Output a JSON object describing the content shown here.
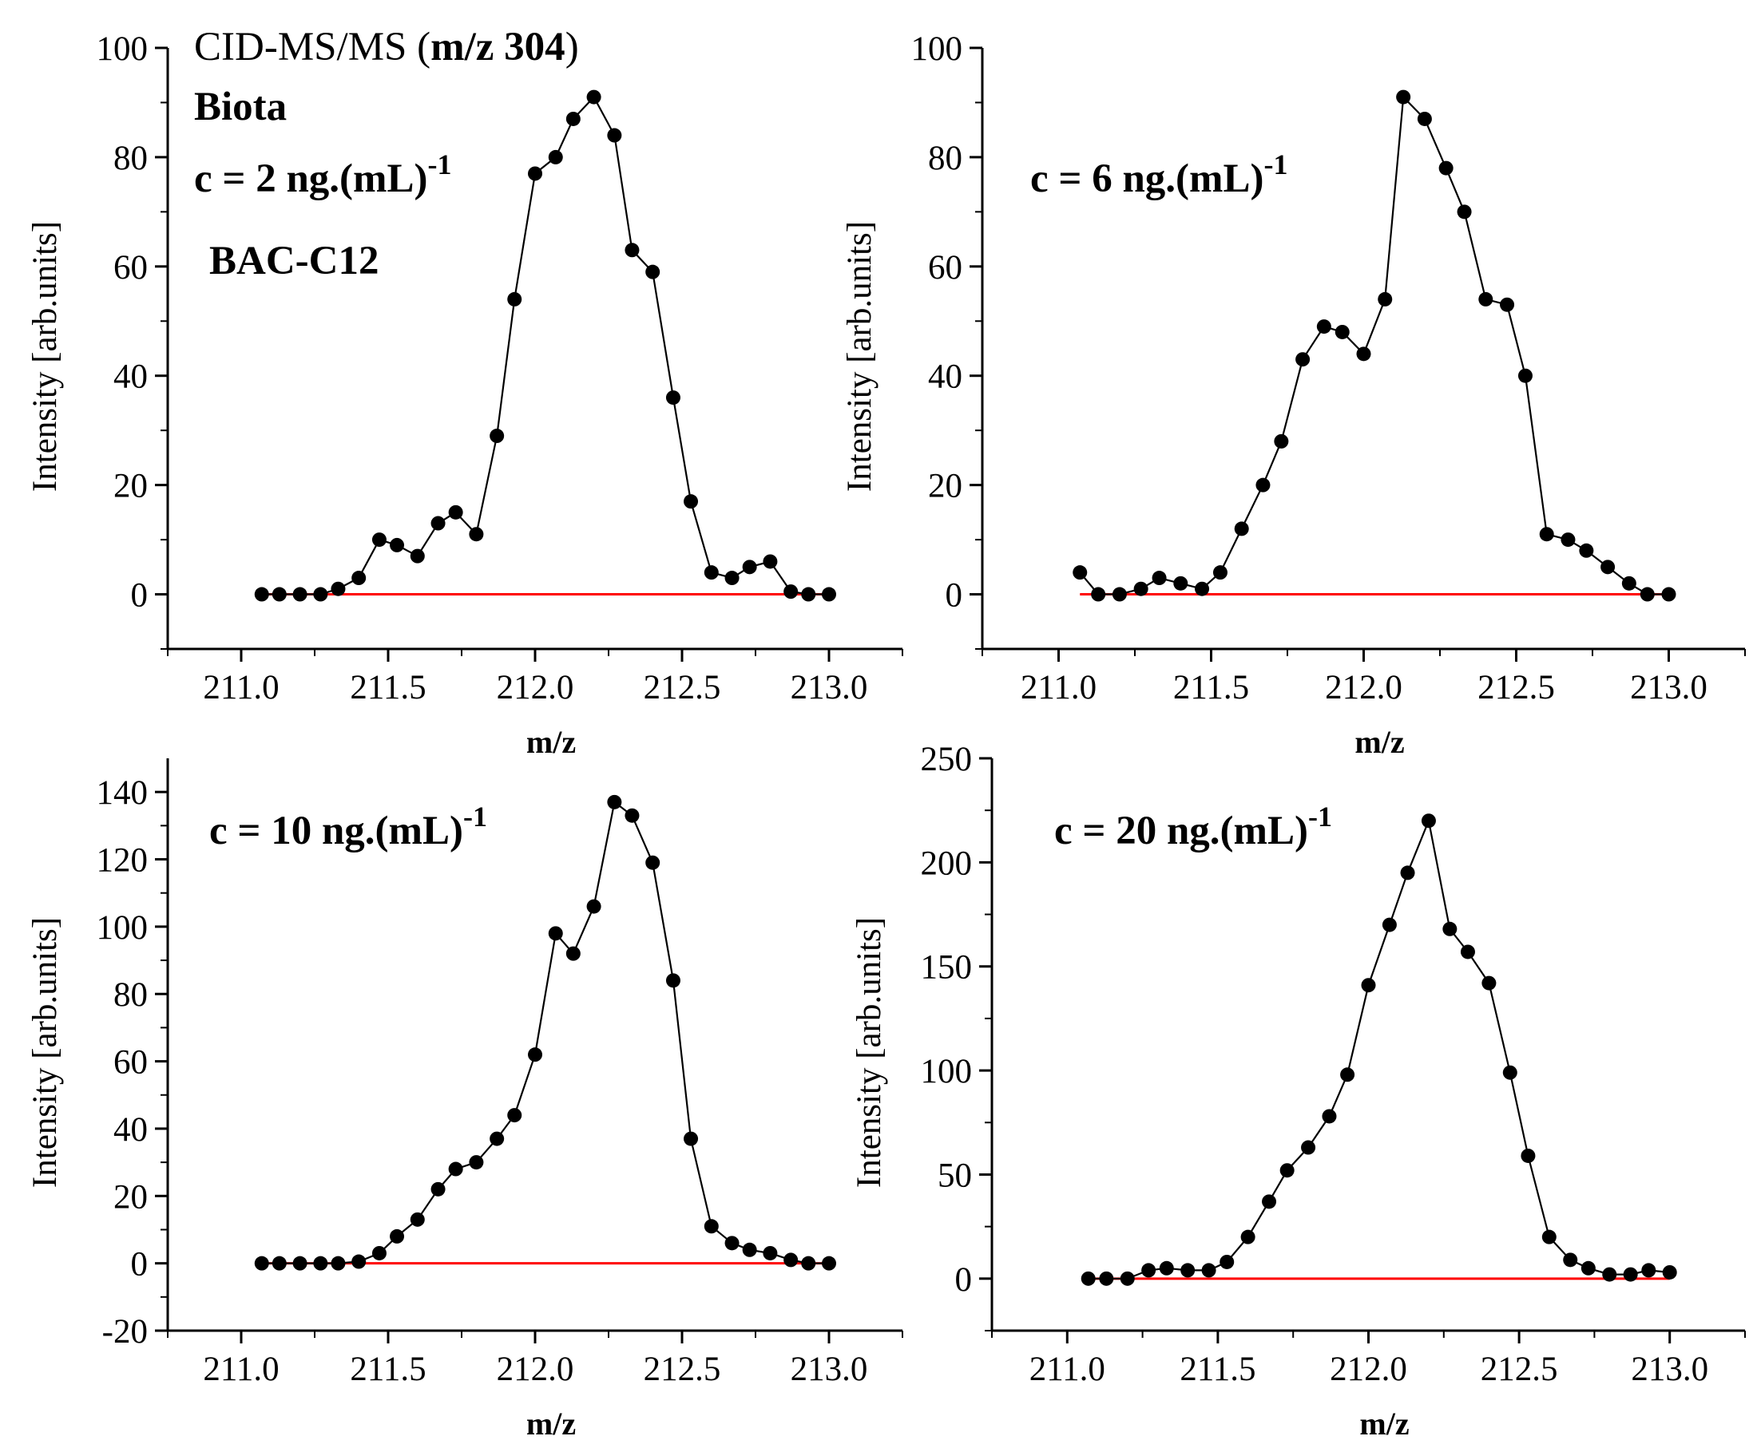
{
  "figure": {
    "annotation_lines": [
      "CID-MS/MS (",
      "m/z 304",
      ")"
    ],
    "sample": "Biota",
    "compound": "BAC-C12",
    "compound_color": "#ff0000",
    "line_color": "#000000",
    "marker_color": "#000000",
    "baseline_color": "#ff0000"
  },
  "chart_data": [
    {
      "type": "line",
      "title": "c = 2 ng.(mL)",
      "title_sup": "-1",
      "xlabel": "m/z",
      "ylabel": "Intensity [arb.units]",
      "xlim": [
        210.75,
        213.25
      ],
      "ylim": [
        -10,
        100
      ],
      "xticks": [
        211.0,
        211.5,
        212.0,
        212.5,
        213.0
      ],
      "xtick_labels": [
        "211.0",
        "211.5",
        "212.0",
        "212.5",
        "213.0"
      ],
      "yticks": [
        0,
        20,
        40,
        60,
        80,
        100
      ],
      "ytick_labels": [
        "0",
        "20",
        "40",
        "60",
        "80",
        "100"
      ],
      "baseline": 0,
      "series": [
        {
          "name": "BAC-C12",
          "x": [
            211.07,
            211.13,
            211.2,
            211.27,
            211.33,
            211.4,
            211.47,
            211.53,
            211.6,
            211.67,
            211.73,
            211.8,
            211.87,
            211.93,
            212.0,
            212.07,
            212.13,
            212.2,
            212.27,
            212.33,
            212.4,
            212.47,
            212.53,
            212.6,
            212.67,
            212.73,
            212.8,
            212.87,
            212.93,
            213.0
          ],
          "y": [
            0,
            0,
            0,
            0,
            1,
            3,
            10,
            9,
            7,
            13,
            15,
            11,
            29,
            54,
            77,
            80,
            87,
            91,
            84,
            63,
            59,
            36,
            17,
            4,
            3,
            5,
            6,
            0.5,
            0,
            0
          ]
        }
      ]
    },
    {
      "type": "line",
      "title": "c = 6 ng.(mL)",
      "title_sup": "-1",
      "xlabel": "m/z",
      "ylabel": "Intensity [arb.units]",
      "xlim": [
        210.75,
        213.25
      ],
      "ylim": [
        -10,
        100
      ],
      "xticks": [
        211.0,
        211.5,
        212.0,
        212.5,
        213.0
      ],
      "xtick_labels": [
        "211.0",
        "211.5",
        "212.0",
        "212.5",
        "213.0"
      ],
      "yticks": [
        0,
        20,
        40,
        60,
        80,
        100
      ],
      "ytick_labels": [
        "0",
        "20",
        "40",
        "60",
        "80",
        "100"
      ],
      "baseline": 0,
      "series": [
        {
          "name": "BAC-C12",
          "x": [
            211.07,
            211.13,
            211.2,
            211.27,
            211.33,
            211.4,
            211.47,
            211.53,
            211.6,
            211.67,
            211.73,
            211.8,
            211.87,
            211.93,
            212.0,
            212.07,
            212.13,
            212.2,
            212.27,
            212.33,
            212.4,
            212.47,
            212.53,
            212.6,
            212.67,
            212.73,
            212.8,
            212.87,
            212.93,
            213.0
          ],
          "y": [
            4,
            0,
            0,
            1,
            3,
            2,
            1,
            4,
            12,
            20,
            28,
            43,
            49,
            48,
            44,
            54,
            91,
            87,
            78,
            70,
            54,
            53,
            40,
            11,
            10,
            8,
            5,
            2,
            0,
            0
          ]
        }
      ]
    },
    {
      "type": "line",
      "title": "c = 10 ng.(mL)",
      "title_sup": "-1",
      "xlabel": "m/z",
      "ylabel": "Intensity [arb.units]",
      "xlim": [
        210.75,
        213.25
      ],
      "ylim": [
        -20,
        150
      ],
      "xticks": [
        211.0,
        211.5,
        212.0,
        212.5,
        213.0
      ],
      "xtick_labels": [
        "211.0",
        "211.5",
        "212.0",
        "212.5",
        "213.0"
      ],
      "yticks": [
        -20,
        0,
        20,
        40,
        60,
        80,
        100,
        120,
        140
      ],
      "ytick_labels": [
        "-20",
        "0",
        "20",
        "40",
        "60",
        "80",
        "100",
        "120",
        "140"
      ],
      "baseline": 0,
      "series": [
        {
          "name": "BAC-C12",
          "x": [
            211.07,
            211.13,
            211.2,
            211.27,
            211.33,
            211.4,
            211.47,
            211.53,
            211.6,
            211.67,
            211.73,
            211.8,
            211.87,
            211.93,
            212.0,
            212.07,
            212.13,
            212.2,
            212.27,
            212.33,
            212.4,
            212.47,
            212.53,
            212.6,
            212.67,
            212.73,
            212.8,
            212.87,
            212.93,
            213.0
          ],
          "y": [
            0,
            0,
            0,
            0,
            0,
            0.5,
            3,
            8,
            13,
            22,
            28,
            30,
            37,
            44,
            62,
            98,
            92,
            106,
            137,
            133,
            119,
            84,
            37,
            11,
            6,
            4,
            3,
            1,
            0,
            0
          ]
        }
      ]
    },
    {
      "type": "line",
      "title": "c = 20 ng.(mL)",
      "title_sup": "-1",
      "xlabel": "m/z",
      "ylabel": "Intensity [arb.units]",
      "xlim": [
        210.75,
        213.25
      ],
      "ylim": [
        -25,
        250
      ],
      "xticks": [
        211.0,
        211.5,
        212.0,
        212.5,
        213.0
      ],
      "xtick_labels": [
        "211.0",
        "211.5",
        "212.0",
        "212.5",
        "213.0"
      ],
      "yticks": [
        0,
        50,
        100,
        150,
        200,
        250
      ],
      "ytick_labels": [
        "0",
        "50",
        "100",
        "150",
        "200",
        "250"
      ],
      "baseline": 0,
      "series": [
        {
          "name": "BAC-C12",
          "x": [
            211.07,
            211.13,
            211.2,
            211.27,
            211.33,
            211.4,
            211.47,
            211.53,
            211.6,
            211.67,
            211.73,
            211.8,
            211.87,
            211.93,
            212.0,
            212.07,
            212.13,
            212.2,
            212.27,
            212.33,
            212.4,
            212.47,
            212.53,
            212.6,
            212.67,
            212.73,
            212.8,
            212.87,
            212.93,
            213.0
          ],
          "y": [
            0,
            0,
            0,
            4,
            5,
            4,
            4,
            8,
            20,
            37,
            52,
            63,
            78,
            98,
            141,
            170,
            195,
            220,
            168,
            157,
            142,
            99,
            59,
            20,
            9,
            5,
            2,
            2,
            4,
            3
          ]
        }
      ]
    }
  ]
}
